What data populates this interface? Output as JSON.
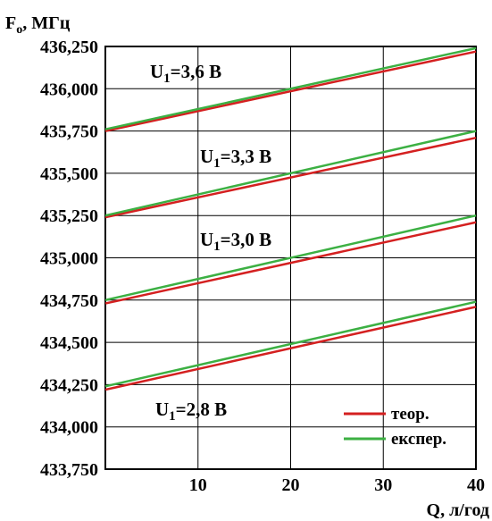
{
  "chart_data": {
    "type": "line",
    "ylabel_main": "F",
    "ylabel_sub": "o",
    "ylabel_unit": ",  МГц",
    "xlabel": "Q, л/год",
    "xlim": [
      0,
      40
    ],
    "ylim": [
      433.75,
      436.25
    ],
    "x_ticks": [
      10,
      20,
      30,
      40
    ],
    "x_tick_labels": [
      "10",
      "20",
      "30",
      "40"
    ],
    "y_ticks": [
      433.75,
      434.0,
      434.25,
      434.5,
      434.75,
      435.0,
      435.25,
      435.5,
      435.75,
      436.0,
      436.25
    ],
    "y_tick_labels": [
      "433,750",
      "434,000",
      "434,250",
      "434,500",
      "434,750",
      "435,000",
      "435,250",
      "435,500",
      "435,750",
      "436,000",
      "436,250"
    ],
    "grid": true,
    "legend_position": "bottom-right",
    "colors": {
      "theory": "#d42020",
      "experiment": "#3cb043",
      "grid": "#000000"
    },
    "legend": [
      {
        "label": "теор.",
        "color": "#d42020"
      },
      {
        "label": "експер.",
        "color": "#3cb043"
      }
    ],
    "groups": [
      {
        "label_main": "U",
        "label_sub": "1",
        "label_rest": "=3,6 В",
        "theory": {
          "x": [
            0,
            40
          ],
          "y": [
            435.75,
            436.22
          ]
        },
        "experiment": {
          "x": [
            0,
            40
          ],
          "y": [
            435.76,
            436.24
          ]
        }
      },
      {
        "label_main": "U",
        "label_sub": "1",
        "label_rest": "=3,3 В",
        "theory": {
          "x": [
            0,
            40
          ],
          "y": [
            435.24,
            435.71
          ]
        },
        "experiment": {
          "x": [
            0,
            40
          ],
          "y": [
            435.25,
            435.75
          ]
        }
      },
      {
        "label_main": "U",
        "label_sub": "1",
        "label_rest": "=3,0 В",
        "theory": {
          "x": [
            0,
            40
          ],
          "y": [
            434.73,
            435.21
          ]
        },
        "experiment": {
          "x": [
            0,
            40
          ],
          "y": [
            434.75,
            435.25
          ]
        }
      },
      {
        "label_main": "U",
        "label_sub": "1",
        "label_rest": "=2,8 В",
        "theory": {
          "x": [
            0,
            40
          ],
          "y": [
            434.22,
            434.71
          ]
        },
        "experiment": {
          "x": [
            0,
            40
          ],
          "y": [
            434.24,
            434.74
          ]
        }
      }
    ]
  }
}
